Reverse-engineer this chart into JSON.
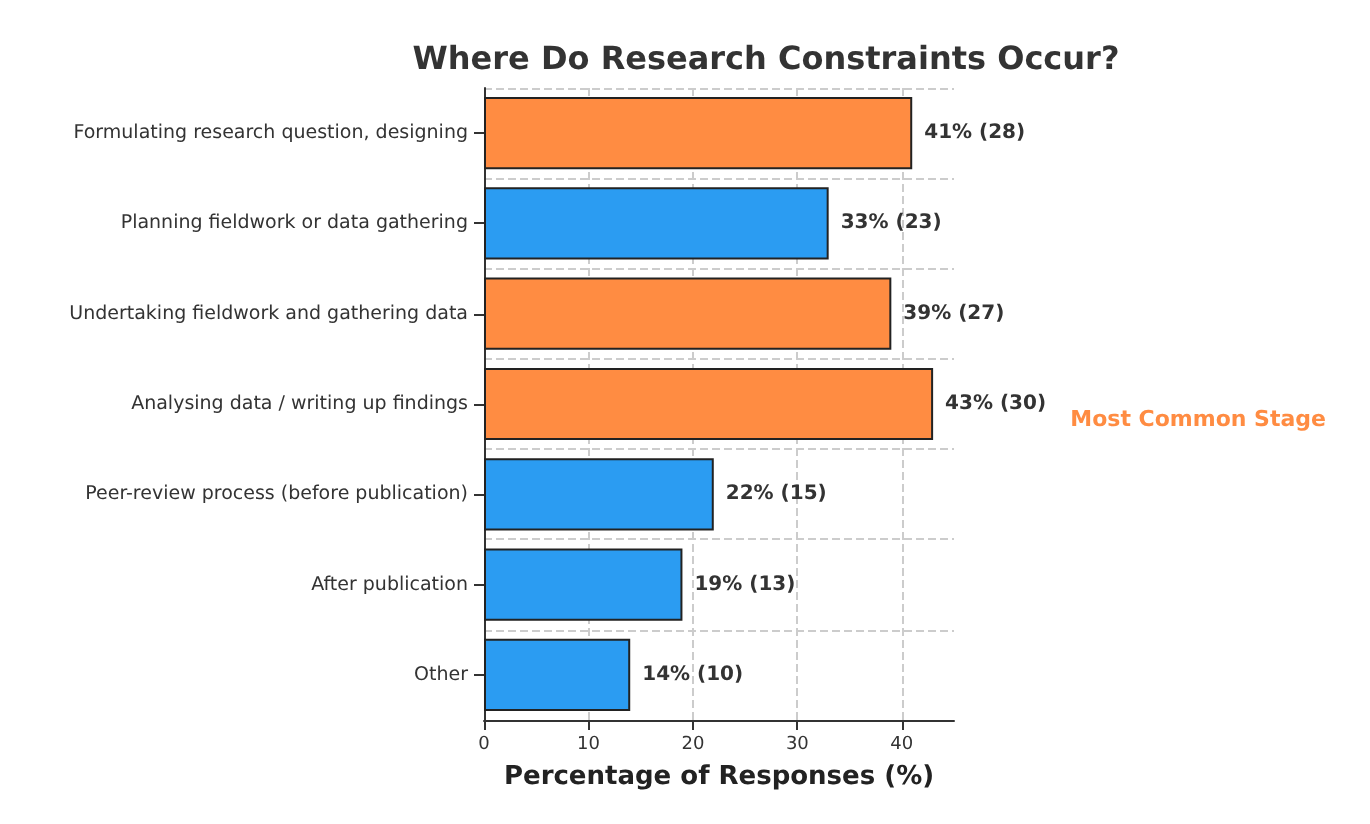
{
  "chart_data": {
    "type": "bar",
    "orientation": "horizontal",
    "title": "Where Do Research Constraints Occur?",
    "xlabel": "Percentage of Responses (%)",
    "categories": [
      "Formulating research question, designing",
      "Planning fieldwork or data gathering",
      "Undertaking fieldwork and gathering data",
      "Analysing data / writing up findings",
      "Peer-review process (before publication)",
      "After publication",
      "Other"
    ],
    "values": [
      41,
      33,
      39,
      43,
      22,
      19,
      14
    ],
    "colors": [
      "#ff8c42",
      "#2b9cf2",
      "#ff8c42",
      "#ff8c42",
      "#2b9cf2",
      "#2b9cf2",
      "#2b9cf2"
    ],
    "value_labels": [
      "41% (28)",
      "33% (23)",
      "39% (27)",
      "43% (30)",
      "22% (15)",
      "19% (13)",
      "14% (10)"
    ],
    "annotations": [
      "Most Common Stage"
    ],
    "xlim": [
      0,
      45
    ],
    "xticks": [
      0,
      10,
      20,
      30,
      40
    ],
    "grid": true
  }
}
